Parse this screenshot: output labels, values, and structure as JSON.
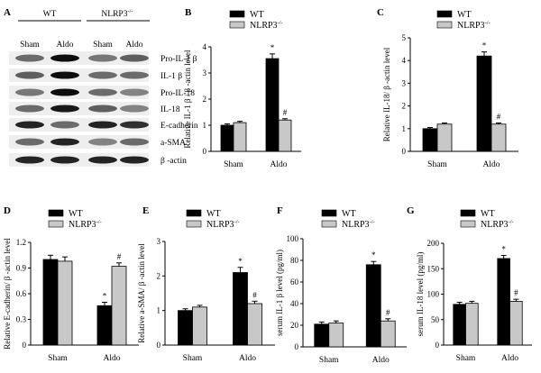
{
  "figure_title": "",
  "colors": {
    "wt": "#000000",
    "ko": "#c8c8c8",
    "blot_bg": "#eeeeee"
  },
  "panelA": {
    "label": "A",
    "groups": [
      "WT",
      "NLRP3"
    ],
    "group_superscript": "-/-",
    "conditions": [
      "Sham",
      "Aldo",
      "Sham",
      "Aldo"
    ],
    "bands": [
      "Pro-IL-1 β",
      "IL-1 β",
      "Pro-IL-18",
      "IL-18",
      "E-cadherin",
      "a-SMA",
      "β -actin"
    ]
  },
  "legend": {
    "wt": "WT",
    "ko": "NLRP3",
    "ko_sup": "-/-"
  },
  "chart_data": [
    {
      "panel": "B",
      "type": "bar",
      "ylabel": "Relative IL-1 β / β -actin level",
      "categories": [
        "Sham",
        "Aldo"
      ],
      "ylim": [
        0,
        4
      ],
      "yticks": [
        "0",
        "1",
        "2",
        "3",
        "4"
      ],
      "series": [
        {
          "name": "WT",
          "values": [
            1.0,
            3.55
          ],
          "errors": [
            0.05,
            0.18
          ]
        },
        {
          "name": "NLRP3-/-",
          "values": [
            1.1,
            1.2
          ],
          "errors": [
            0.05,
            0.05
          ]
        }
      ],
      "annotations": [
        "*",
        "#"
      ]
    },
    {
      "panel": "C",
      "type": "bar",
      "ylabel": "Relative IL-18/ β -actin level",
      "categories": [
        "Sham",
        "Aldo"
      ],
      "ylim": [
        0,
        5
      ],
      "yticks": [
        "0",
        "1",
        "2",
        "3",
        "4",
        "5"
      ],
      "series": [
        {
          "name": "WT",
          "values": [
            1.0,
            4.2
          ],
          "errors": [
            0.05,
            0.18
          ]
        },
        {
          "name": "NLRP3-/-",
          "values": [
            1.2,
            1.2
          ],
          "errors": [
            0.05,
            0.05
          ]
        }
      ],
      "annotations": [
        "*",
        "#"
      ]
    },
    {
      "panel": "D",
      "type": "bar",
      "ylabel": "Relative E-cadherin/ β -actin level",
      "categories": [
        "Sham",
        "Aldo"
      ],
      "ylim": [
        0,
        1.2
      ],
      "yticks": [
        "0",
        "0.3",
        "0.6",
        "0.9",
        "1.2"
      ],
      "series": [
        {
          "name": "WT",
          "values": [
            1.0,
            0.46
          ],
          "errors": [
            0.05,
            0.04
          ]
        },
        {
          "name": "NLRP3-/-",
          "values": [
            0.98,
            0.92
          ],
          "errors": [
            0.05,
            0.04
          ]
        }
      ],
      "annotations": [
        "*",
        "#"
      ]
    },
    {
      "panel": "E",
      "type": "bar",
      "ylabel": "Relative a-SMA/ β -actin level",
      "categories": [
        "Sham",
        "Aldo"
      ],
      "ylim": [
        0,
        3
      ],
      "yticks": [
        "0",
        "1",
        "2",
        "3"
      ],
      "series": [
        {
          "name": "WT",
          "values": [
            1.0,
            2.1
          ],
          "errors": [
            0.05,
            0.15
          ]
        },
        {
          "name": "NLRP3-/-",
          "values": [
            1.1,
            1.2
          ],
          "errors": [
            0.05,
            0.07
          ]
        }
      ],
      "annotations": [
        "*",
        "#"
      ]
    },
    {
      "panel": "F",
      "type": "bar",
      "ylabel": "serum IL-1 β level (pg/ml)",
      "categories": [
        "Sham",
        "Aldo"
      ],
      "ylim": [
        0,
        100
      ],
      "yticks": [
        "0",
        "20",
        "40",
        "60",
        "80",
        "100"
      ],
      "series": [
        {
          "name": "WT",
          "values": [
            21,
            76
          ],
          "errors": [
            2,
            3
          ]
        },
        {
          "name": "NLRP3-/-",
          "values": [
            22,
            24
          ],
          "errors": [
            2,
            2
          ]
        }
      ],
      "annotations": [
        "*",
        "#"
      ]
    },
    {
      "panel": "G",
      "type": "bar",
      "ylabel": "serum IL-18 level (pg/ml)",
      "categories": [
        "Sham",
        "Aldo"
      ],
      "ylim": [
        0,
        200
      ],
      "yticks": [
        "0",
        "50",
        "100",
        "150",
        "200"
      ],
      "series": [
        {
          "name": "WT",
          "values": [
            80,
            170
          ],
          "errors": [
            4,
            6
          ]
        },
        {
          "name": "NLRP3-/-",
          "values": [
            82,
            86
          ],
          "errors": [
            4,
            4
          ]
        }
      ],
      "annotations": [
        "*",
        "#"
      ]
    }
  ]
}
